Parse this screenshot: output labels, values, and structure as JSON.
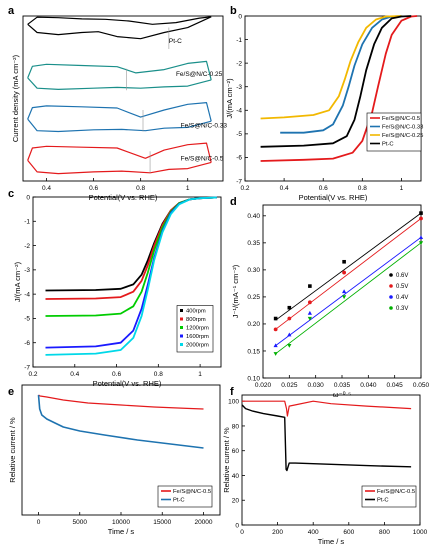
{
  "chart_data": [
    {
      "panel": "a",
      "type": "line",
      "xlabel": "Potential(V vs. RHE)",
      "ylabel": "Current density (mA cm⁻²)",
      "xlim": [
        0.3,
        1.15
      ],
      "xticks": [
        0.4,
        0.6,
        0.8,
        1.0
      ],
      "yticks": [],
      "series": [
        {
          "name": "Pt-C",
          "color": "#000000",
          "label_at": [
            0.92,
            0.35
          ],
          "marker_x": 0.92,
          "upper": {
            "x": [
              0.32,
              0.36,
              0.45,
              0.55,
              0.65,
              0.75,
              0.85,
              0.95,
              1.05,
              1.1
            ],
            "y": [
              0.8,
              0.97,
              0.96,
              0.93,
              0.92,
              0.88,
              0.8,
              0.84,
              0.95,
              0.98
            ]
          },
          "lower": {
            "x": [
              0.32,
              0.36,
              0.45,
              0.55,
              0.62,
              0.7,
              0.8,
              0.9,
              1.0,
              1.1
            ],
            "y": [
              0.8,
              0.6,
              0.55,
              0.6,
              0.62,
              0.5,
              0.45,
              0.6,
              0.72,
              0.98
            ]
          }
        },
        {
          "name": "Fe/S@N/C-0.25",
          "color": "#1a8f8a",
          "label_at": [
            0.95,
            0.55
          ],
          "marker_x": 0.74,
          "upper": {
            "x": [
              0.32,
              0.34,
              0.4,
              0.55,
              0.7,
              0.78,
              0.9,
              1.0,
              1.08,
              1.1
            ],
            "y": [
              0.5,
              0.78,
              0.83,
              0.8,
              0.77,
              0.62,
              0.7,
              0.85,
              0.9,
              0.45
            ]
          },
          "lower": {
            "x": [
              0.32,
              0.36,
              0.45,
              0.6,
              0.7,
              0.8,
              0.9,
              1.0,
              1.1
            ],
            "y": [
              0.5,
              0.25,
              0.22,
              0.25,
              0.27,
              0.25,
              0.28,
              0.3,
              0.45
            ]
          }
        },
        {
          "name": "Fe/S@N/C-0.33",
          "color": "#1e73b0",
          "label_at": [
            0.97,
            0.3
          ],
          "marker_x": 0.81,
          "upper": {
            "x": [
              0.32,
              0.34,
              0.4,
              0.55,
              0.7,
              0.8,
              0.9,
              1.0,
              1.08,
              1.1
            ],
            "y": [
              0.5,
              0.78,
              0.82,
              0.8,
              0.77,
              0.55,
              0.72,
              0.86,
              0.9,
              0.45
            ]
          },
          "lower": {
            "x": [
              0.32,
              0.36,
              0.45,
              0.6,
              0.72,
              0.82,
              0.9,
              1.0,
              1.1
            ],
            "y": [
              0.5,
              0.22,
              0.2,
              0.24,
              0.25,
              0.22,
              0.28,
              0.3,
              0.45
            ]
          }
        },
        {
          "name": "Fe/S@N/C-0.5",
          "color": "#e41a1c",
          "label_at": [
            0.97,
            0.5
          ],
          "marker_x": 0.84,
          "upper": {
            "x": [
              0.32,
              0.34,
              0.4,
              0.55,
              0.7,
              0.82,
              0.9,
              1.0,
              1.08,
              1.1
            ],
            "y": [
              0.5,
              0.8,
              0.84,
              0.82,
              0.8,
              0.55,
              0.75,
              0.88,
              0.92,
              0.45
            ]
          },
          "lower": {
            "x": [
              0.32,
              0.36,
              0.45,
              0.6,
              0.72,
              0.84,
              0.92,
              1.0,
              1.1
            ],
            "y": [
              0.5,
              0.22,
              0.18,
              0.22,
              0.24,
              0.2,
              0.28,
              0.3,
              0.45
            ]
          }
        }
      ]
    },
    {
      "panel": "b",
      "type": "line",
      "xlabel": "Potential(V vs. RHE)",
      "ylabel": "J/(mA cm⁻²)",
      "xlim": [
        0.2,
        1.1
      ],
      "ylim": [
        -7,
        0
      ],
      "xticks": [
        0.2,
        0.4,
        0.6,
        0.8,
        1.0
      ],
      "yticks": [
        0,
        -1,
        -2,
        -3,
        -4,
        -5,
        -6,
        -7
      ],
      "legend": "bottom-right",
      "series": [
        {
          "name": "Fe/S@N/C-0.5",
          "color": "#e41a1c",
          "lw": 1.8,
          "x": [
            0.28,
            0.5,
            0.65,
            0.75,
            0.8,
            0.85,
            0.88,
            0.92,
            0.95,
            1.0,
            1.05,
            1.08
          ],
          "y": [
            -6.15,
            -6.1,
            -6.05,
            -5.8,
            -5.3,
            -4.1,
            -3.0,
            -1.6,
            -0.8,
            -0.2,
            -0.02,
            0
          ]
        },
        {
          "name": "Fe/S@N/C-0.33",
          "color": "#1e73b0",
          "lw": 1.8,
          "x": [
            0.38,
            0.5,
            0.6,
            0.65,
            0.7,
            0.73,
            0.76,
            0.8,
            0.85,
            0.9,
            0.95,
            1.0
          ],
          "y": [
            -4.95,
            -4.95,
            -4.85,
            -4.6,
            -3.8,
            -3.0,
            -2.1,
            -1.2,
            -0.5,
            -0.15,
            -0.02,
            0
          ]
        },
        {
          "name": "Fe/S@N/C-0.25",
          "color": "#f2b800",
          "lw": 1.8,
          "x": [
            0.28,
            0.4,
            0.55,
            0.63,
            0.68,
            0.71,
            0.74,
            0.78,
            0.82,
            0.87,
            0.92,
            1.0
          ],
          "y": [
            -4.35,
            -4.3,
            -4.2,
            -4.0,
            -3.4,
            -2.7,
            -1.9,
            -1.1,
            -0.5,
            -0.15,
            -0.02,
            0
          ]
        },
        {
          "name": "Pt-C",
          "color": "#000000",
          "lw": 1.8,
          "x": [
            0.28,
            0.5,
            0.65,
            0.72,
            0.76,
            0.79,
            0.82,
            0.86,
            0.9,
            0.95,
            1.0,
            1.05
          ],
          "y": [
            -5.55,
            -5.5,
            -5.4,
            -5.1,
            -4.4,
            -3.4,
            -2.3,
            -1.2,
            -0.5,
            -0.1,
            -0.02,
            0
          ]
        }
      ]
    },
    {
      "panel": "c",
      "type": "line",
      "xlabel": "Potential(V vs. RHE)",
      "ylabel": "J/(mA cm⁻²)",
      "xlim": [
        0.2,
        1.1
      ],
      "ylim": [
        -7,
        0
      ],
      "xticks": [
        0.2,
        0.4,
        0.6,
        0.8,
        1.0
      ],
      "yticks": [
        0,
        -1,
        -2,
        -3,
        -4,
        -5,
        -6,
        -7
      ],
      "legend": "bottom-right",
      "series": [
        {
          "name": "400rpm",
          "color": "#000000",
          "lw": 1.8,
          "x": [
            0.26,
            0.5,
            0.62,
            0.68,
            0.72,
            0.75,
            0.78,
            0.82,
            0.86,
            0.9,
            0.95,
            1.0,
            1.08
          ],
          "y": [
            -3.85,
            -3.83,
            -3.78,
            -3.6,
            -3.2,
            -2.6,
            -1.9,
            -1.1,
            -0.55,
            -0.25,
            -0.1,
            -0.05,
            -0.02
          ]
        },
        {
          "name": "800rpm",
          "color": "#e41a1c",
          "lw": 1.8,
          "x": [
            0.26,
            0.5,
            0.62,
            0.68,
            0.72,
            0.75,
            0.78,
            0.82,
            0.86,
            0.9,
            0.95,
            1.0,
            1.08
          ],
          "y": [
            -4.2,
            -4.18,
            -4.12,
            -3.9,
            -3.45,
            -2.8,
            -2.0,
            -1.15,
            -0.55,
            -0.25,
            -0.1,
            -0.05,
            -0.02
          ]
        },
        {
          "name": "1200rpm",
          "color": "#00cc00",
          "lw": 1.8,
          "x": [
            0.26,
            0.5,
            0.62,
            0.68,
            0.72,
            0.75,
            0.78,
            0.82,
            0.86,
            0.9,
            0.95,
            1.0,
            1.08
          ],
          "y": [
            -4.9,
            -4.88,
            -4.8,
            -4.5,
            -3.9,
            -3.1,
            -2.2,
            -1.25,
            -0.6,
            -0.25,
            -0.1,
            -0.05,
            -0.02
          ]
        },
        {
          "name": "1600rpm",
          "color": "#1a1aff",
          "lw": 1.8,
          "x": [
            0.26,
            0.5,
            0.62,
            0.68,
            0.72,
            0.75,
            0.78,
            0.82,
            0.86,
            0.9,
            0.95,
            1.0,
            1.08
          ],
          "y": [
            -6.2,
            -6.15,
            -6.0,
            -5.5,
            -4.6,
            -3.6,
            -2.5,
            -1.4,
            -0.65,
            -0.28,
            -0.1,
            -0.05,
            -0.02
          ]
        },
        {
          "name": "2000rpm",
          "color": "#00d8e8",
          "lw": 1.8,
          "x": [
            0.26,
            0.5,
            0.62,
            0.68,
            0.72,
            0.75,
            0.78,
            0.82,
            0.86,
            0.9,
            0.95,
            1.0,
            1.08
          ],
          "y": [
            -6.5,
            -6.45,
            -6.3,
            -5.8,
            -4.9,
            -3.8,
            -2.6,
            -1.45,
            -0.7,
            -0.3,
            -0.1,
            -0.05,
            -0.02
          ]
        }
      ]
    },
    {
      "panel": "d",
      "type": "scatter",
      "xlabel": "ω⁻⁰·⁵",
      "ylabel": "J⁻¹/(mA⁻¹ cm⁻²)",
      "xlim": [
        0.02,
        0.05
      ],
      "ylim": [
        0.1,
        0.42
      ],
      "xticks": [
        0.02,
        0.025,
        0.03,
        0.035,
        0.04,
        0.045,
        0.05
      ],
      "yticks": [
        0.1,
        0.15,
        0.2,
        0.25,
        0.3,
        0.35,
        0.4
      ],
      "tick_decimals": {
        "x": 3,
        "y": 2
      },
      "legend": "center-right",
      "x": [
        0.0224,
        0.025,
        0.0289,
        0.0354,
        0.05
      ],
      "series": [
        {
          "name": "0.6V",
          "color": "#000000",
          "marker": "square",
          "y": [
            0.21,
            0.23,
            0.27,
            0.315,
            0.405
          ],
          "fit": [
            0.207,
            0.405
          ]
        },
        {
          "name": "0.5V",
          "color": "#e41a1c",
          "marker": "circle",
          "y": [
            0.19,
            0.21,
            0.24,
            0.295,
            0.395
          ],
          "fit": [
            0.19,
            0.395
          ]
        },
        {
          "name": "0.4V",
          "color": "#1a1aff",
          "marker": "triangle",
          "y": [
            0.16,
            0.18,
            0.22,
            0.26,
            0.36
          ],
          "fit": [
            0.16,
            0.36
          ]
        },
        {
          "name": "0.3V",
          "color": "#00b000",
          "marker": "triangle-down",
          "y": [
            0.145,
            0.16,
            0.21,
            0.25,
            0.35
          ],
          "fit": [
            0.145,
            0.35
          ]
        }
      ]
    },
    {
      "panel": "e",
      "type": "line",
      "xlabel": "Time / s",
      "ylabel": "Relative current  / %",
      "xlim": [
        -2000,
        22000
      ],
      "ylim": [
        40,
        105
      ],
      "xticks": [
        0,
        5000,
        10000,
        15000,
        20000
      ],
      "yticks": [],
      "legend": "bottom-right",
      "series": [
        {
          "name": "Fe/S@N/C-0.5",
          "color": "#e41a1c",
          "lw": 1.2,
          "x": [
            0,
            200,
            1000,
            3000,
            6000,
            10000,
            14000,
            18000,
            20000
          ],
          "y": [
            100,
            99.5,
            99,
            97.5,
            96,
            95,
            94,
            93.3,
            93
          ]
        },
        {
          "name": "Pt-C",
          "color": "#1e73b0",
          "lw": 1.6,
          "x": [
            0,
            150,
            400,
            1000,
            2000,
            3000,
            5000,
            8000,
            12000,
            16000,
            20000
          ],
          "y": [
            100,
            93,
            90,
            88,
            86,
            84,
            82,
            80,
            77.5,
            75.5,
            73.5
          ]
        }
      ]
    },
    {
      "panel": "f",
      "type": "line",
      "xlabel": "Time / s",
      "ylabel": "Relative current  / %",
      "xlim": [
        0,
        1000
      ],
      "ylim": [
        0,
        105
      ],
      "xticks": [
        0,
        200,
        400,
        600,
        800,
        1000
      ],
      "yticks": [
        0,
        20,
        40,
        60,
        80,
        100
      ],
      "legend": "bottom-right",
      "series": [
        {
          "name": "Fe/S@N/C-0.5",
          "color": "#e41a1c",
          "lw": 1.2,
          "x": [
            0,
            240,
            250,
            255,
            265,
            300,
            400,
            500,
            700,
            950
          ],
          "y": [
            100,
            100,
            94,
            88,
            96,
            97,
            100,
            98,
            96,
            94
          ]
        },
        {
          "name": "Pt-C",
          "color": "#000000",
          "lw": 1.4,
          "x": [
            0,
            20,
            60,
            120,
            200,
            240,
            248,
            252,
            265,
            300,
            500,
            700,
            950
          ],
          "y": [
            97,
            94,
            92,
            90,
            88,
            87,
            45,
            44,
            50,
            50,
            49,
            48,
            47
          ]
        }
      ]
    }
  ]
}
